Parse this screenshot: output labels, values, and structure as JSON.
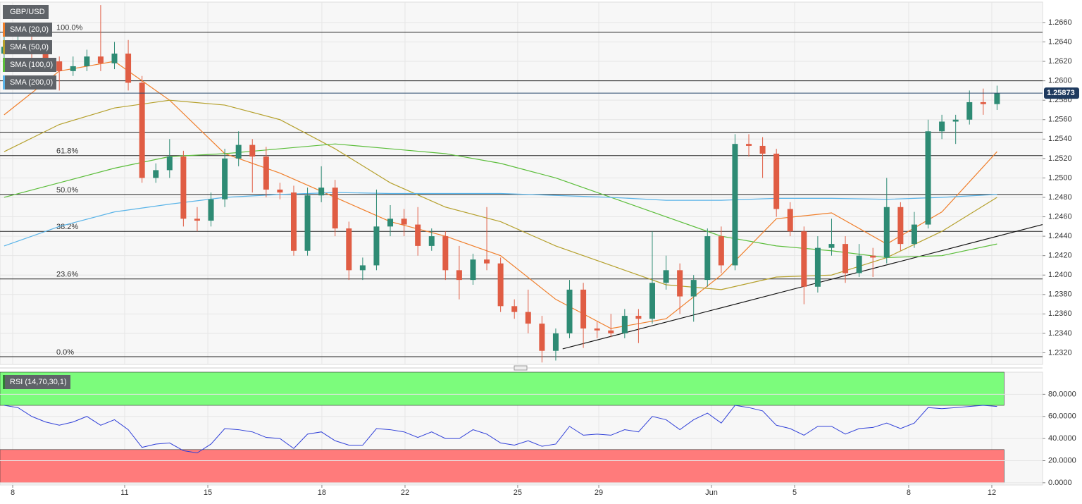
{
  "chart_data": [
    {
      "type": "candlestick",
      "title": "GBP/USD",
      "up_color": "#2e8b74",
      "down_color": "#e05d44",
      "xlim": [
        -0.3,
        75.3
      ],
      "ylim": [
        1.2308,
        1.2681
      ],
      "x": [
        0,
        1,
        2,
        3,
        4,
        5,
        6,
        7,
        8,
        9,
        10,
        11,
        12,
        13,
        14,
        15,
        16,
        17,
        18,
        19,
        20,
        21,
        22,
        23,
        24,
        25,
        26,
        27,
        28,
        29,
        30,
        31,
        32,
        33,
        34,
        35,
        36,
        37,
        38,
        39,
        40,
        41,
        42,
        43,
        44,
        45,
        46,
        47,
        48,
        49,
        50,
        51,
        52,
        53,
        54,
        55,
        56,
        57,
        58,
        59,
        60,
        61,
        62,
        63,
        64,
        65,
        66,
        67,
        68,
        69,
        70,
        71,
        72
      ],
      "ohlc": [
        [
          1.2628,
          1.265,
          1.262,
          1.2635
        ],
        [
          1.2635,
          1.2655,
          1.263,
          1.264
        ],
        [
          1.264,
          1.2648,
          1.2622,
          1.263
        ],
        [
          1.263,
          1.2636,
          1.2612,
          1.262
        ],
        [
          1.262,
          1.2625,
          1.259,
          1.261
        ],
        [
          1.261,
          1.2625,
          1.2605,
          1.2615
        ],
        [
          1.2615,
          1.2632,
          1.261,
          1.2625
        ],
        [
          1.2625,
          1.2678,
          1.261,
          1.2618
        ],
        [
          1.2618,
          1.264,
          1.2612,
          1.2628
        ],
        [
          1.2628,
          1.2642,
          1.259,
          1.2598
        ],
        [
          1.2598,
          1.2605,
          1.2495,
          1.25
        ],
        [
          1.25,
          1.2515,
          1.2495,
          1.2508
        ],
        [
          1.2508,
          1.254,
          1.25,
          1.2522
        ],
        [
          1.2522,
          1.2528,
          1.245,
          1.2458
        ],
        [
          1.2458,
          1.247,
          1.2445,
          1.2456
        ],
        [
          1.2456,
          1.2485,
          1.245,
          1.2478
        ],
        [
          1.2478,
          1.253,
          1.247,
          1.252
        ],
        [
          1.252,
          1.2548,
          1.2512,
          1.2534
        ],
        [
          1.2534,
          1.254,
          1.2485,
          1.2522
        ],
        [
          1.2522,
          1.2532,
          1.248,
          1.2488
        ],
        [
          1.2488,
          1.2495,
          1.2478,
          1.2485
        ],
        [
          1.2485,
          1.2492,
          1.242,
          1.2425
        ],
        [
          1.2425,
          1.249,
          1.242,
          1.2482
        ],
        [
          1.2482,
          1.2512,
          1.2475,
          1.249
        ],
        [
          1.249,
          1.2498,
          1.244,
          1.2448
        ],
        [
          1.2448,
          1.2455,
          1.2395,
          1.2405
        ],
        [
          1.2405,
          1.2418,
          1.2395,
          1.241
        ],
        [
          1.241,
          1.2488,
          1.2405,
          1.245
        ],
        [
          1.245,
          1.2472,
          1.244,
          1.2458
        ],
        [
          1.2458,
          1.2468,
          1.244,
          1.2452
        ],
        [
          1.2452,
          1.247,
          1.242,
          1.243
        ],
        [
          1.243,
          1.2448,
          1.2425,
          1.244
        ],
        [
          1.244,
          1.2445,
          1.2395,
          1.2405
        ],
        [
          1.2405,
          1.243,
          1.2375,
          1.2395
        ],
        [
          1.2395,
          1.2422,
          1.239,
          1.2416
        ],
        [
          1.2416,
          1.247,
          1.2405,
          1.2412
        ],
        [
          1.2412,
          1.2418,
          1.2362,
          1.2368
        ],
        [
          1.2368,
          1.2375,
          1.2355,
          1.2362
        ],
        [
          1.2362,
          1.2385,
          1.234,
          1.235
        ],
        [
          1.235,
          1.2358,
          1.231,
          1.2322
        ],
        [
          1.2322,
          1.2345,
          1.2312,
          1.234
        ],
        [
          1.234,
          1.2395,
          1.2335,
          1.2385
        ],
        [
          1.2385,
          1.2392,
          1.2325,
          1.2345
        ],
        [
          1.2345,
          1.2352,
          1.2335,
          1.2343
        ],
        [
          1.2343,
          1.236,
          1.2336,
          1.234
        ],
        [
          1.234,
          1.2365,
          1.2335,
          1.2358
        ],
        [
          1.2358,
          1.2365,
          1.233,
          1.2355
        ],
        [
          1.2355,
          1.2445,
          1.235,
          1.2392
        ],
        [
          1.2392,
          1.242,
          1.2385,
          1.2405
        ],
        [
          1.2405,
          1.2412,
          1.236,
          1.2378
        ],
        [
          1.2378,
          1.24,
          1.2352,
          1.2395
        ],
        [
          1.2395,
          1.2448,
          1.2388,
          1.244
        ],
        [
          1.244,
          1.245,
          1.2402,
          1.241
        ],
        [
          1.241,
          1.2545,
          1.2405,
          1.2535
        ],
        [
          1.2535,
          1.2545,
          1.2522,
          1.2533
        ],
        [
          1.2533,
          1.2542,
          1.25,
          1.2525
        ],
        [
          1.2525,
          1.253,
          1.246,
          1.2468
        ],
        [
          1.2468,
          1.2475,
          1.244,
          1.2445
        ],
        [
          1.2445,
          1.245,
          1.237,
          1.2388
        ],
        [
          1.2388,
          1.244,
          1.2382,
          1.2428
        ],
        [
          1.2428,
          1.2458,
          1.242,
          1.2432
        ],
        [
          1.2432,
          1.244,
          1.2392,
          1.2402
        ],
        [
          1.2402,
          1.2432,
          1.2398,
          1.242
        ],
        [
          1.242,
          1.2428,
          1.2398,
          1.2418
        ],
        [
          1.2418,
          1.25,
          1.2412,
          1.247
        ],
        [
          1.247,
          1.2475,
          1.2425,
          1.2432
        ],
        [
          1.2432,
          1.2465,
          1.2428,
          1.2452
        ],
        [
          1.2452,
          1.256,
          1.2448,
          1.2548
        ],
        [
          1.2548,
          1.2565,
          1.254,
          1.2558
        ],
        [
          1.2558,
          1.2565,
          1.2535,
          1.256
        ],
        [
          1.256,
          1.259,
          1.2555,
          1.2578
        ],
        [
          1.2578,
          1.2592,
          1.2565,
          1.2576
        ],
        [
          1.2576,
          1.2595,
          1.257,
          1.2587
        ]
      ],
      "series": [
        {
          "name": "SMA (20,0)",
          "color": "#f07e2a",
          "x": [
            0,
            4,
            8,
            12,
            16,
            20,
            24,
            28,
            32,
            36,
            40,
            44,
            48,
            52,
            56,
            60,
            64,
            68,
            72
          ],
          "values": [
            1.2565,
            1.261,
            1.262,
            1.258,
            1.2525,
            1.2505,
            1.248,
            1.2455,
            1.244,
            1.242,
            1.2375,
            1.2345,
            1.2355,
            1.24,
            1.2458,
            1.2464,
            1.2432,
            1.2465,
            1.2527
          ]
        },
        {
          "name": "SMA (50,0)",
          "color": "#b5a02c",
          "x": [
            0,
            4,
            8,
            12,
            16,
            20,
            24,
            28,
            32,
            36,
            40,
            44,
            48,
            52,
            56,
            60,
            64,
            68,
            72
          ],
          "values": [
            1.2527,
            1.2555,
            1.2572,
            1.258,
            1.2575,
            1.256,
            1.253,
            1.2495,
            1.247,
            1.2455,
            1.243,
            1.241,
            1.239,
            1.2385,
            1.2398,
            1.24,
            1.2418,
            1.2445,
            1.248
          ]
        },
        {
          "name": "SMA (100,0)",
          "color": "#5bbd3a",
          "x": [
            0,
            4,
            8,
            12,
            16,
            20,
            24,
            28,
            32,
            36,
            40,
            44,
            48,
            52,
            56,
            60,
            64,
            68,
            72
          ],
          "values": [
            1.248,
            1.2495,
            1.251,
            1.2522,
            1.2525,
            1.253,
            1.2535,
            1.253,
            1.2525,
            1.2515,
            1.25,
            1.248,
            1.246,
            1.244,
            1.243,
            1.2425,
            1.2418,
            1.242,
            1.2432
          ]
        },
        {
          "name": "SMA (200,0)",
          "color": "#5ab4e8",
          "x": [
            0,
            4,
            8,
            12,
            16,
            20,
            24,
            28,
            32,
            36,
            40,
            44,
            48,
            52,
            56,
            60,
            64,
            68,
            72
          ],
          "values": [
            1.243,
            1.245,
            1.2465,
            1.2473,
            1.248,
            1.2483,
            1.2485,
            1.2484,
            1.2484,
            1.2484,
            1.2482,
            1.248,
            1.2477,
            1.2477,
            1.2479,
            1.2479,
            1.2478,
            1.248,
            1.2483
          ]
        }
      ],
      "trendline": {
        "x": [
          40.5,
          75.3
        ],
        "values": [
          1.2324,
          1.2452
        ]
      },
      "levels": [
        {
          "label": "100.0%",
          "value": 1.265
        },
        {
          "value": 1.26
        },
        {
          "value": 1.2547
        },
        {
          "label": "61.8%",
          "value": 1.2523
        },
        {
          "label": "50.0%",
          "value": 1.2483
        },
        {
          "label": "38.2%",
          "value": 1.2445
        },
        {
          "label": "23.6%",
          "value": 1.2396
        },
        {
          "label": "0.0%",
          "value": 1.2316
        }
      ],
      "last_price": 1.25873,
      "yticks": [
        {
          "value": 1.232,
          "label": "1.2320"
        },
        {
          "value": 1.234,
          "label": "1.2340"
        },
        {
          "value": 1.236,
          "label": "1.2360"
        },
        {
          "value": 1.238,
          "label": "1.2380"
        },
        {
          "value": 1.24,
          "label": "1.2400"
        },
        {
          "value": 1.242,
          "label": "1.2420"
        },
        {
          "value": 1.244,
          "label": "1.2440"
        },
        {
          "value": 1.246,
          "label": "1.2460"
        },
        {
          "value": 1.248,
          "label": "1.2480"
        },
        {
          "value": 1.25,
          "label": "1.2500"
        },
        {
          "value": 1.252,
          "label": "1.2520"
        },
        {
          "value": 1.254,
          "label": "1.2540"
        },
        {
          "value": 1.256,
          "label": "1.2560"
        },
        {
          "value": 1.258,
          "label": "1.2580"
        },
        {
          "value": 1.26,
          "label": "1.2600"
        },
        {
          "value": 1.262,
          "label": "1.2620"
        },
        {
          "value": 1.264,
          "label": "1.2640"
        },
        {
          "value": 1.266,
          "label": "1.2660"
        }
      ],
      "xticks": [
        {
          "value": 0.62,
          "label": "8"
        },
        {
          "value": 8.74,
          "label": "11"
        },
        {
          "value": 14.77,
          "label": "15"
        },
        {
          "value": 23.04,
          "label": "18"
        },
        {
          "value": 29.07,
          "label": "22"
        },
        {
          "value": 37.24,
          "label": "25"
        },
        {
          "value": 43.12,
          "label": "29"
        },
        {
          "value": 51.29,
          "label": "Jun"
        },
        {
          "value": 57.32,
          "label": "5"
        },
        {
          "value": 65.59,
          "label": "8"
        },
        {
          "value": 71.62,
          "label": "12"
        }
      ],
      "grid": true
    },
    {
      "type": "line",
      "title": "RSI (14,70,30,1)",
      "color": "#2f3fd8",
      "xlim": [
        -0.3,
        75.3
      ],
      "ylim": [
        -2,
        100
      ],
      "x": [
        0,
        1,
        2,
        3,
        4,
        5,
        6,
        7,
        8,
        9,
        10,
        11,
        12,
        13,
        14,
        15,
        16,
        17,
        18,
        19,
        20,
        21,
        22,
        23,
        24,
        25,
        26,
        27,
        28,
        29,
        30,
        31,
        32,
        33,
        34,
        35,
        36,
        37,
        38,
        39,
        40,
        41,
        42,
        43,
        44,
        45,
        46,
        47,
        48,
        49,
        50,
        51,
        52,
        53,
        54,
        55,
        56,
        57,
        58,
        59,
        60,
        61,
        62,
        63,
        64,
        65,
        66,
        67,
        68,
        69,
        70,
        71,
        72
      ],
      "values": [
        70,
        68,
        60,
        55,
        52,
        55,
        60,
        52,
        57,
        48,
        32,
        35,
        36,
        29,
        27,
        35,
        49,
        48,
        46,
        41,
        40,
        31,
        44,
        46,
        38,
        34,
        34,
        49,
        48,
        46,
        41,
        46,
        40,
        40,
        48,
        44,
        36,
        34,
        38,
        33,
        35,
        51,
        43,
        44,
        43,
        48,
        46,
        60,
        57,
        48,
        57,
        63,
        54,
        70,
        68,
        65,
        52,
        49,
        43,
        51,
        51,
        44,
        49,
        50,
        54,
        49,
        54,
        68,
        67,
        68,
        69,
        70,
        69
      ],
      "bands": [
        {
          "range": [
            70,
            100
          ],
          "color": "#7cfc7c"
        },
        {
          "range": [
            0,
            30
          ],
          "color": "#ff7b7b"
        }
      ],
      "yticks": [
        {
          "value": 0,
          "label": "0.0000"
        },
        {
          "value": 20,
          "label": "20.0000"
        },
        {
          "value": 40,
          "label": "40.0000"
        },
        {
          "value": 60,
          "label": "60.0000"
        },
        {
          "value": 80,
          "label": "80.0000"
        }
      ],
      "grid": true
    }
  ]
}
